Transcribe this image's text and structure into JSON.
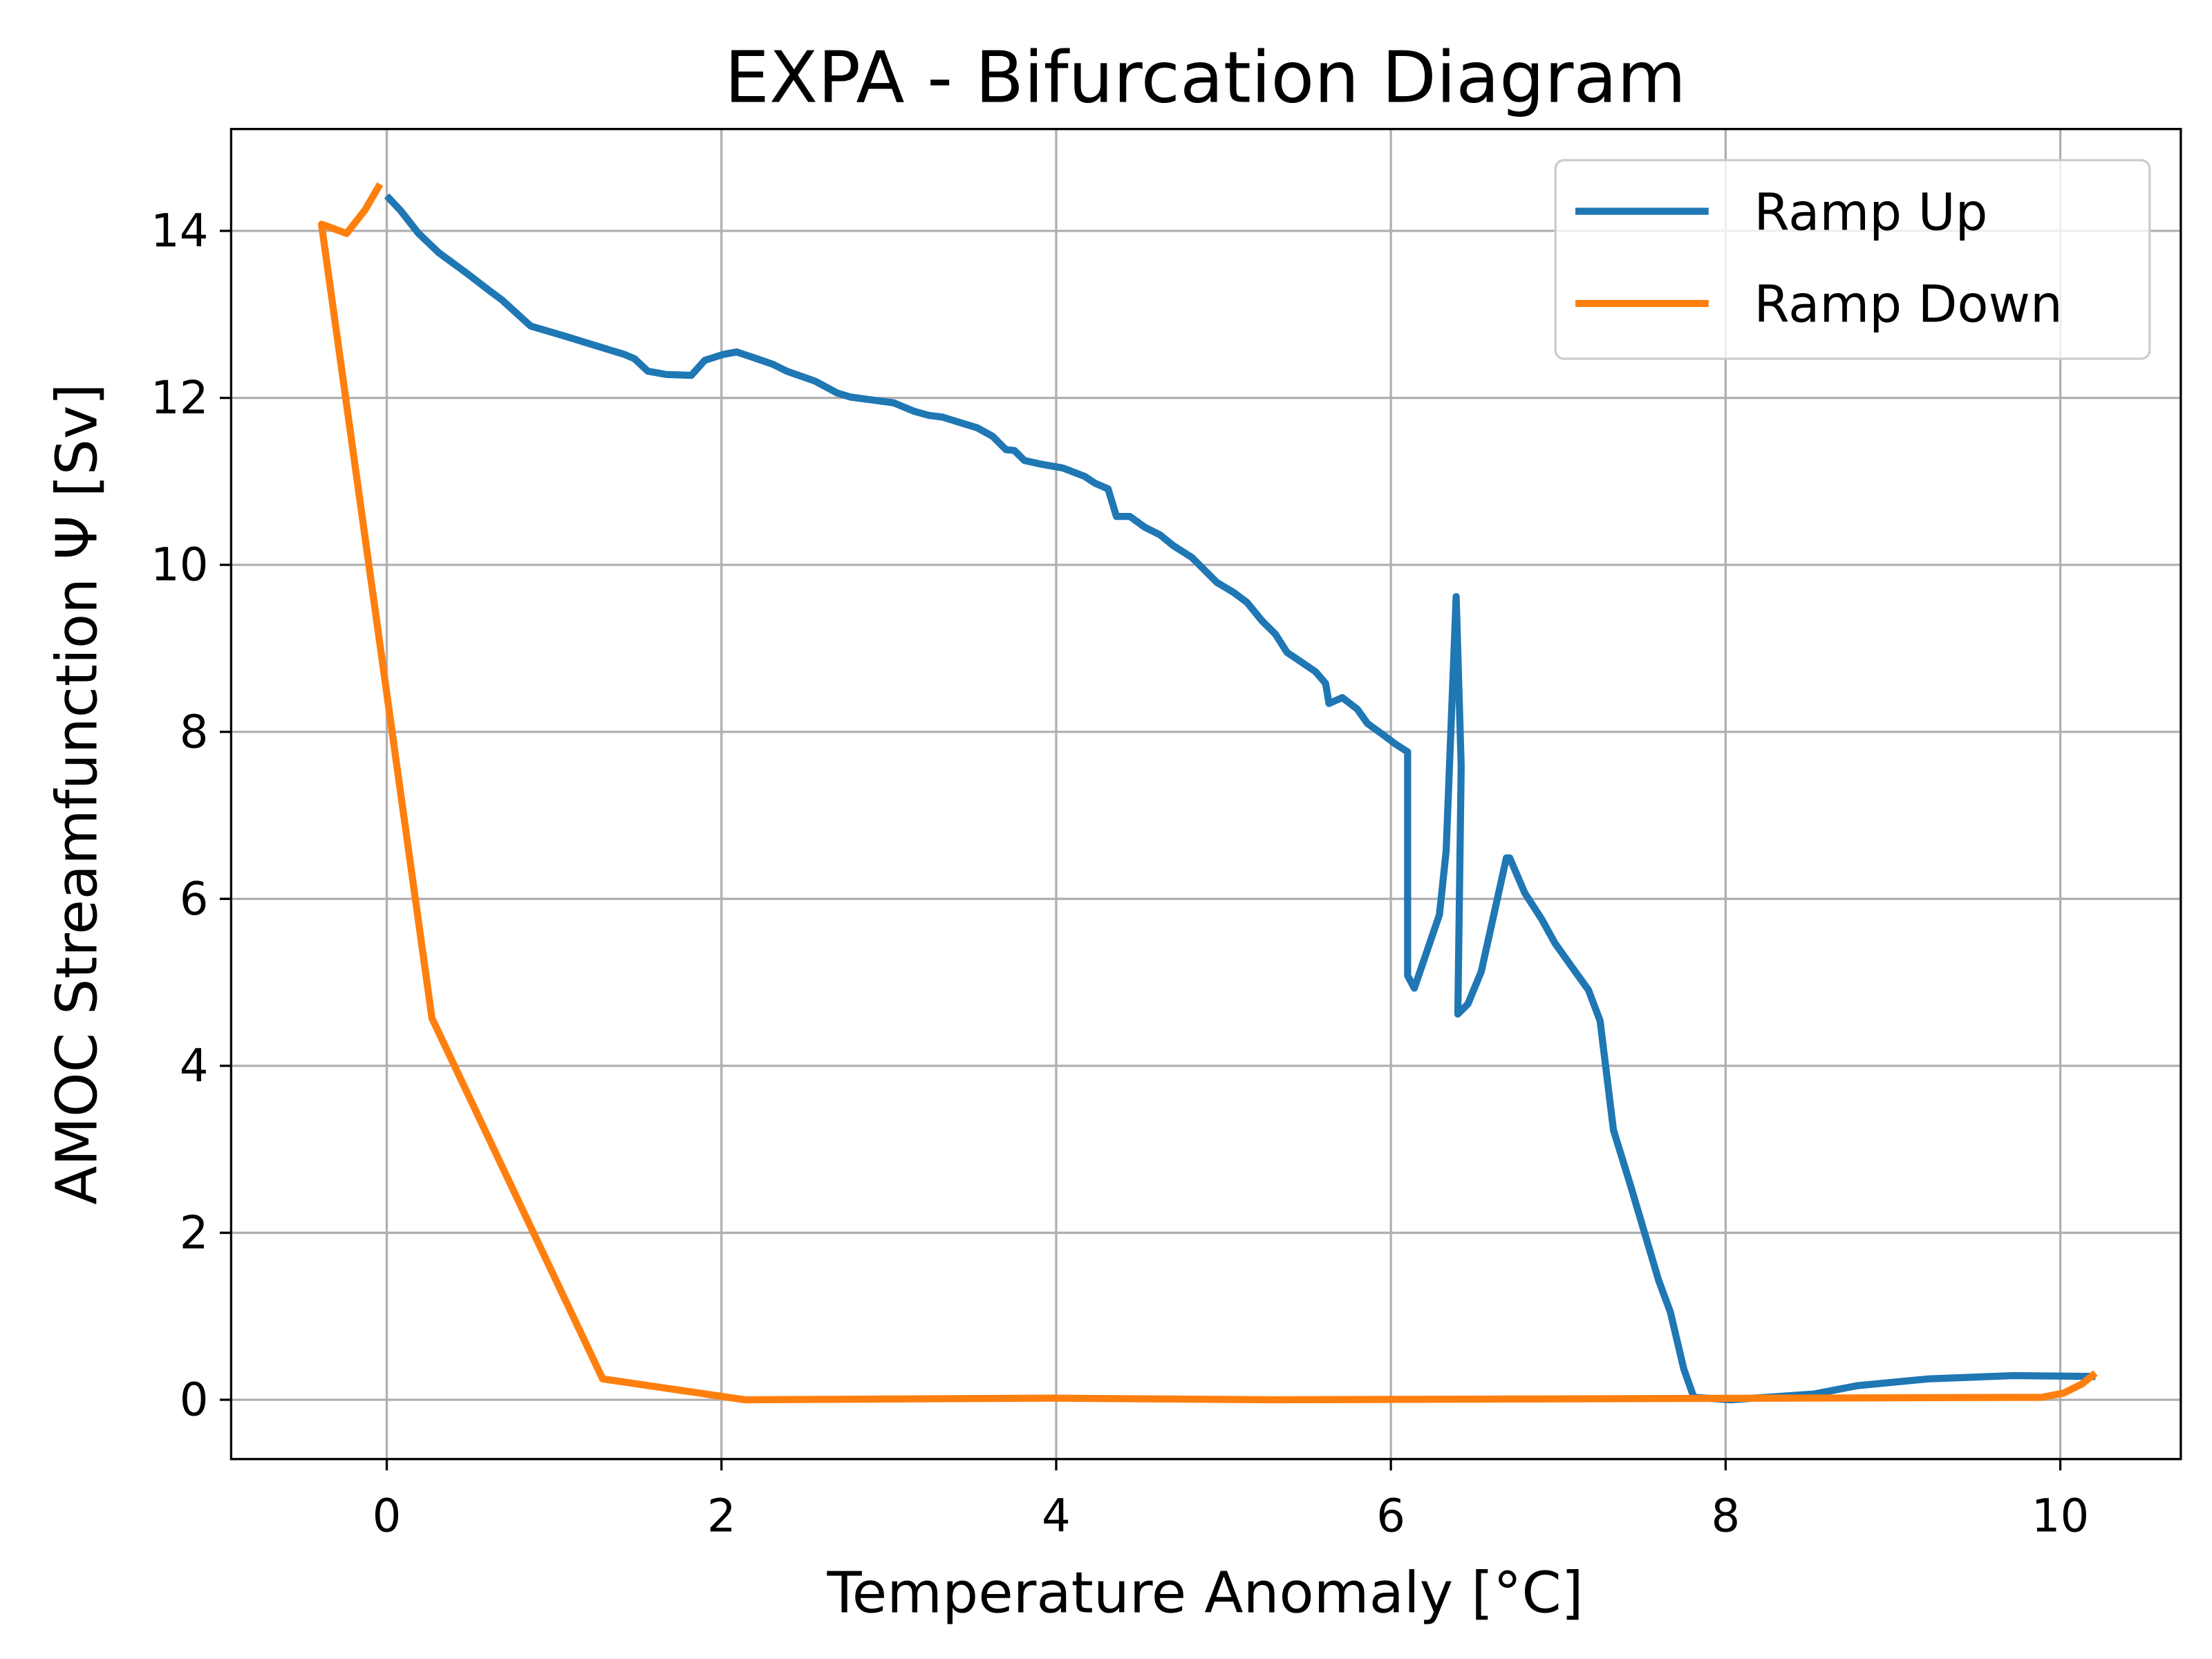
{
  "chart_data": {
    "type": "line",
    "title": "EXPA - Bifurcation Diagram",
    "x_label": "Temperature Anomaly [°C]",
    "y_label": "AMOC Streamfunction Ψ [Sv]",
    "xlim": [
      -0.93,
      10.72
    ],
    "ylim": [
      -0.71,
      15.22
    ],
    "xticks": [
      0,
      2,
      4,
      6,
      8,
      10
    ],
    "yticks": [
      0,
      2,
      4,
      6,
      8,
      10,
      12,
      14
    ],
    "grid": true,
    "legend": "upper right",
    "series": [
      {
        "name": "Ramp Up",
        "color": "#1f77b4",
        "x": [
          0,
          0.08,
          0.19,
          0.31,
          0.48,
          0.61,
          0.69,
          0.86,
          1.08,
          1.42,
          1.48,
          1.56,
          1.67,
          1.82,
          1.9,
          2.01,
          2.09,
          2.18,
          2.31,
          2.39,
          2.56,
          2.69,
          2.77,
          3.03,
          3.15,
          3.24,
          3.32,
          3.53,
          3.62,
          3.7,
          3.75,
          3.81,
          3.9,
          4.04,
          4.17,
          4.23,
          4.31,
          4.36,
          4.44,
          4.53,
          4.62,
          4.7,
          4.81,
          4.87,
          4.96,
          5.06,
          5.14,
          5.23,
          5.31,
          5.38,
          5.44,
          5.55,
          5.61,
          5.63,
          5.71,
          5.8,
          5.86,
          5.95,
          6.03,
          6.1,
          6.1,
          6.14,
          6.29,
          6.33,
          6.39,
          6.42,
          6.4,
          6.46,
          6.54,
          6.69,
          6.71,
          6.8,
          6.9,
          6.98,
          7.09,
          7.18,
          7.25,
          7.33,
          7.43,
          7.6,
          7.67,
          7.75,
          7.81,
          8.03,
          8.53,
          8.79,
          9.21,
          9.72,
          10.21
        ],
        "values": [
          14.42,
          14.25,
          13.97,
          13.74,
          13.49,
          13.29,
          13.17,
          12.86,
          12.73,
          12.52,
          12.47,
          12.32,
          12.28,
          12.27,
          12.45,
          12.52,
          12.55,
          12.49,
          12.4,
          12.32,
          12.2,
          12.06,
          12.01,
          11.94,
          11.84,
          11.79,
          11.77,
          11.64,
          11.54,
          11.38,
          11.37,
          11.25,
          11.21,
          11.16,
          11.06,
          10.98,
          10.91,
          10.58,
          10.58,
          10.45,
          10.36,
          10.23,
          10.09,
          9.97,
          9.79,
          9.67,
          9.55,
          9.33,
          9.17,
          8.95,
          8.87,
          8.72,
          8.58,
          8.34,
          8.41,
          8.27,
          8.1,
          7.97,
          7.85,
          7.76,
          5.08,
          4.93,
          5.81,
          6.57,
          9.62,
          7.59,
          4.62,
          4.74,
          5.13,
          6.49,
          6.49,
          6.07,
          5.76,
          5.47,
          5.16,
          4.91,
          4.54,
          3.23,
          2.58,
          1.43,
          1.05,
          0.37,
          0.03,
          0,
          0.07,
          0.17,
          0.25,
          0.29,
          0.28
        ]
      },
      {
        "name": "Ramp Down",
        "color": "#ff7f0e",
        "x": [
          10.21,
          10.13,
          10.02,
          9.89,
          5.31,
          3.96,
          2.14,
          1.29,
          0.27,
          -0.39,
          -0.24,
          -0.13,
          -0.04
        ],
        "values": [
          0.32,
          0.19,
          0.08,
          0.03,
          0,
          0.02,
          0,
          0.25,
          4.57,
          14.08,
          13.97,
          14.25,
          14.56
        ]
      }
    ]
  }
}
